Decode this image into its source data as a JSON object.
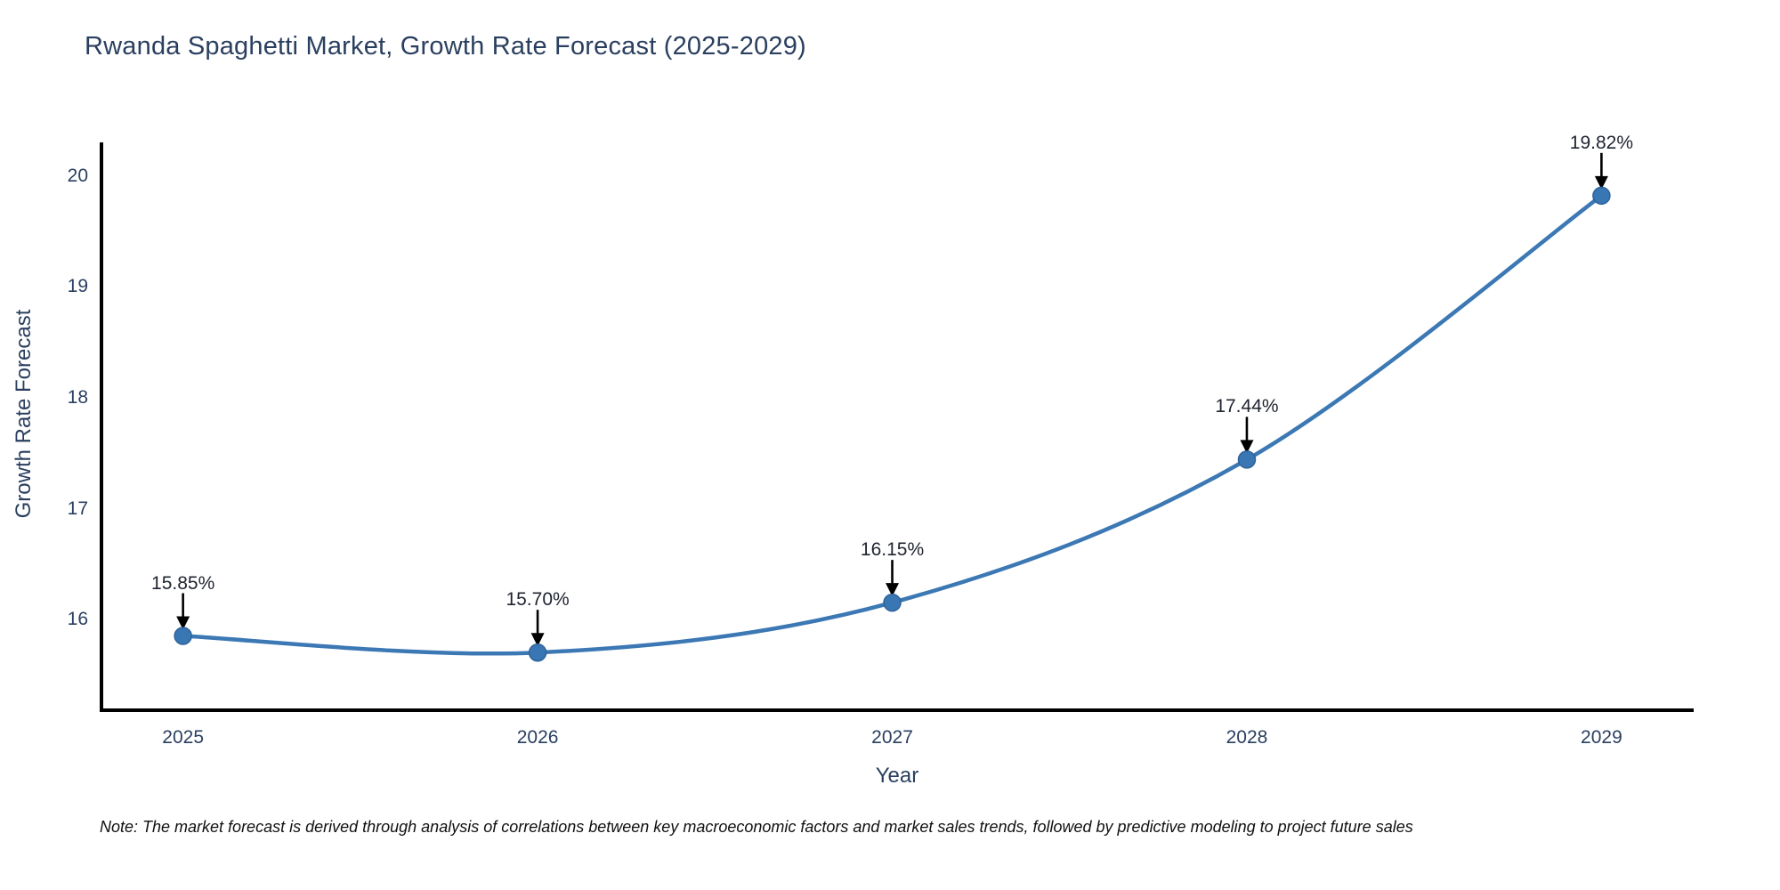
{
  "note": "Note: The market forecast is derived through analysis of correlations between key macroeconomic factors and market sales trends, followed by predictive modeling to project future sales",
  "chart_data": {
    "type": "line",
    "title": "Rwanda Spaghetti Market, Growth Rate Forecast (2025-2029)",
    "xlabel": "Year",
    "ylabel": "Growth Rate Forecast",
    "line_shape": "spline",
    "grid": false,
    "legend": "none",
    "x": [
      2025,
      2026,
      2027,
      2028,
      2029
    ],
    "values": [
      15.85,
      15.7,
      16.15,
      17.44,
      19.82
    ],
    "labels": [
      "15.85%",
      "15.70%",
      "16.15%",
      "17.44%",
      "19.82%"
    ],
    "xtick_labels": [
      "2025",
      "2026",
      "2027",
      "2028",
      "2029"
    ],
    "ytick_values": [
      16,
      17,
      18,
      19,
      20
    ],
    "ytick_labels": [
      "16",
      "17",
      "18",
      "19",
      "20"
    ],
    "xlim": [
      2024.77,
      2029.26
    ],
    "ylim": [
      15.18,
      20.3
    ],
    "colors": {
      "line": "#3c78b4",
      "marker": "#3876b4",
      "marker_edge": "#2f6399",
      "axis": "#000000",
      "tick_text": "#2a3f5f",
      "annotation_text": "#1f2430",
      "arrow": "#000000",
      "background": "#ffffff"
    }
  }
}
